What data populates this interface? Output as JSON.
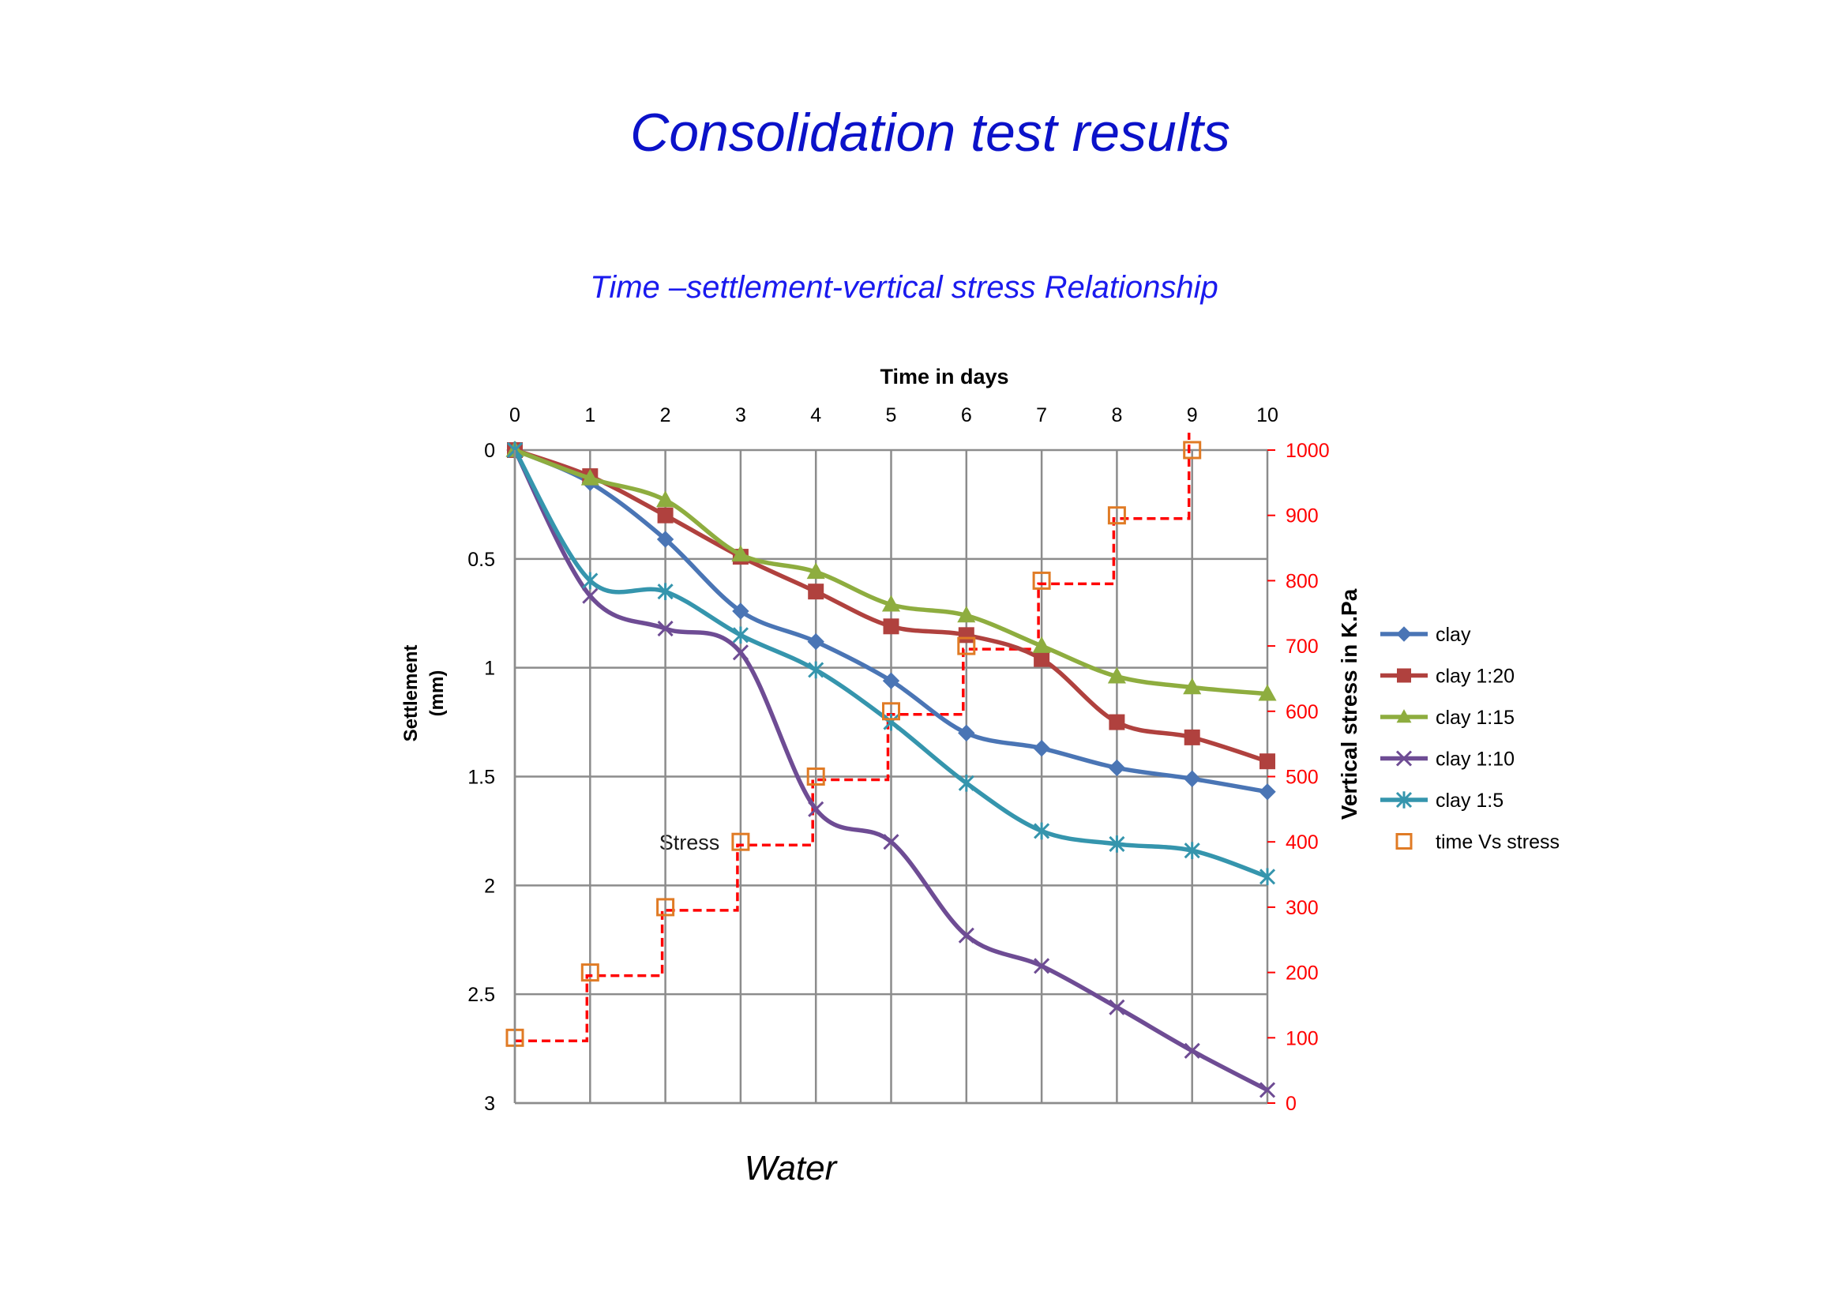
{
  "page": {
    "title": "Consolidation test results",
    "subtitle": "Time –settlement-vertical stress Relationship",
    "footer": "Water",
    "colors": {
      "title": "#0b12c9",
      "subtitle": "#1a1aee",
      "right_axis": "#ff0000",
      "grid": "#8c8c8c"
    }
  },
  "chart_data": {
    "type": "line",
    "title": "Time –settlement-vertical stress Relationship",
    "xlabel": "Time  in days",
    "ylabel": "Settlement\n(mm)",
    "y2label": "Vertical stress  in K.Pa",
    "xlim": [
      0,
      10
    ],
    "ylim": [
      3,
      0
    ],
    "y2lim": [
      0,
      1000
    ],
    "x_ticks": [
      "0",
      "1",
      "2",
      "3",
      "4",
      "5",
      "6",
      "7",
      "8",
      "9",
      "10"
    ],
    "y_ticks": [
      "0",
      "0.5",
      "1",
      "1.5",
      "2",
      "2.5",
      "3"
    ],
    "y2_ticks": [
      "1000",
      "900",
      "800",
      "700",
      "600",
      "500",
      "400",
      "300",
      "200",
      "100",
      "0"
    ],
    "grid": true,
    "legend_position": "right",
    "annotation": "Stress",
    "x": [
      0,
      1,
      2,
      3,
      4,
      5,
      6,
      7,
      8,
      9,
      10
    ],
    "series": [
      {
        "name": "clay",
        "color": "#4a75b5",
        "marker": "diamond",
        "values": [
          0,
          0.15,
          0.41,
          0.74,
          0.88,
          1.06,
          1.3,
          1.37,
          1.46,
          1.51,
          1.57
        ]
      },
      {
        "name": "clay 1:20",
        "color": "#b0413e",
        "marker": "square",
        "values": [
          0,
          0.12,
          0.3,
          0.49,
          0.65,
          0.81,
          0.85,
          0.96,
          1.25,
          1.32,
          1.43
        ]
      },
      {
        "name": "clay 1:15",
        "color": "#8ead3f",
        "marker": "triangle",
        "values": [
          0,
          0.13,
          0.23,
          0.48,
          0.56,
          0.71,
          0.76,
          0.9,
          1.04,
          1.09,
          1.12
        ]
      },
      {
        "name": "clay 1:10",
        "color": "#6e4c94",
        "marker": "x",
        "values": [
          0,
          0.67,
          0.82,
          0.93,
          1.65,
          1.8,
          2.23,
          2.37,
          2.56,
          2.76,
          2.94
        ]
      },
      {
        "name": "clay 1:5",
        "color": "#3595ad",
        "marker": "asterisk",
        "values": [
          0,
          0.6,
          0.65,
          0.85,
          1.01,
          1.25,
          1.53,
          1.75,
          1.81,
          1.84,
          1.96
        ]
      }
    ],
    "stress_series": {
      "name": "time Vs stress",
      "color": "#e07b25",
      "line_color": "#ff0000",
      "marker": "open-square",
      "axis": "secondary",
      "x": [
        0,
        1,
        2,
        3,
        4,
        5,
        6,
        7,
        8,
        9
      ],
      "values": [
        100,
        200,
        300,
        400,
        500,
        600,
        700,
        800,
        900,
        1000
      ]
    }
  }
}
